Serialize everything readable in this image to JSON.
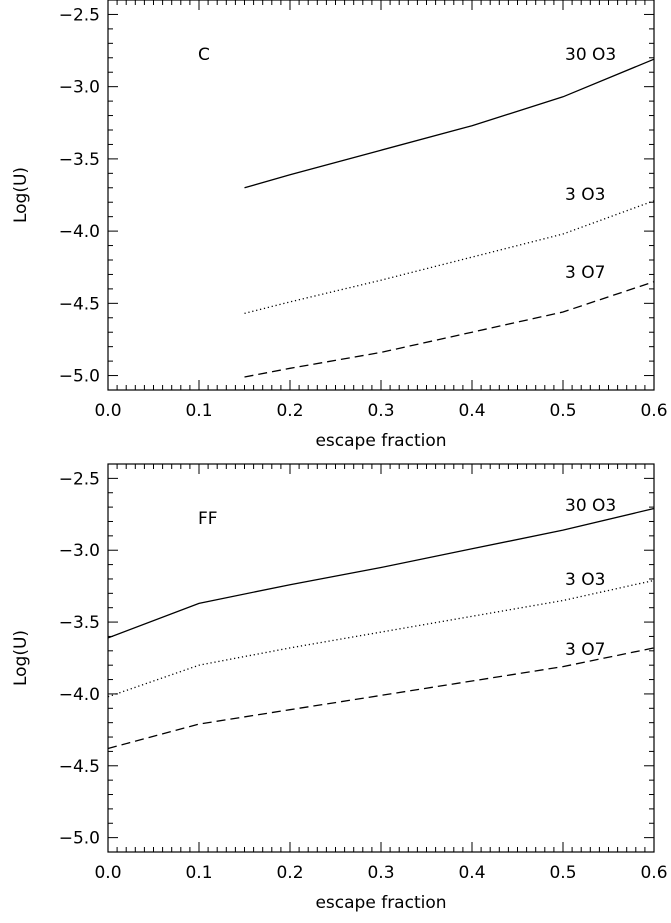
{
  "chart_data": [
    {
      "type": "line",
      "panel": "C",
      "xlabel": "escape fraction",
      "ylabel": "Log(U)",
      "xlim": [
        0.0,
        0.6
      ],
      "ylim": [
        -5.1,
        -2.4
      ],
      "x_ticks": [
        "0.0",
        "0.1",
        "0.2",
        "0.3",
        "0.4",
        "0.5",
        "0.6"
      ],
      "y_ticks": [
        "-2.5",
        "-3.0",
        "-3.5",
        "-4.0",
        "-4.5",
        "-5.0"
      ],
      "annotations": [
        "C",
        "30 O3",
        "3 O3",
        "3 O7"
      ],
      "series": [
        {
          "name": "30 O3",
          "style": "solid",
          "x": [
            0.15,
            0.2,
            0.3,
            0.4,
            0.5,
            0.6
          ],
          "y": [
            -3.7,
            -3.61,
            -3.44,
            -3.27,
            -3.07,
            -2.81
          ]
        },
        {
          "name": "3 O3",
          "style": "dotted",
          "x": [
            0.15,
            0.2,
            0.3,
            0.4,
            0.5,
            0.6
          ],
          "y": [
            -4.57,
            -4.49,
            -4.34,
            -4.18,
            -4.02,
            -3.79
          ]
        },
        {
          "name": "3 O7",
          "style": "dashed",
          "x": [
            0.15,
            0.2,
            0.3,
            0.4,
            0.5,
            0.6
          ],
          "y": [
            -5.01,
            -4.95,
            -4.84,
            -4.7,
            -4.56,
            -4.35
          ]
        }
      ]
    },
    {
      "type": "line",
      "panel": "FF",
      "xlabel": "escape fraction",
      "ylabel": "Log(U)",
      "xlim": [
        0.0,
        0.6
      ],
      "ylim": [
        -5.1,
        -2.4
      ],
      "x_ticks": [
        "0.0",
        "0.1",
        "0.2",
        "0.3",
        "0.4",
        "0.5",
        "0.6"
      ],
      "y_ticks": [
        "-2.5",
        "-3.0",
        "-3.5",
        "-4.0",
        "-4.5",
        "-5.0"
      ],
      "annotations": [
        "FF",
        "30 O3",
        "3 O3",
        "3 O7"
      ],
      "series": [
        {
          "name": "30 O3",
          "style": "solid",
          "x": [
            0.0,
            0.1,
            0.2,
            0.3,
            0.4,
            0.5,
            0.6
          ],
          "y": [
            -3.61,
            -3.37,
            -3.24,
            -3.12,
            -2.99,
            -2.86,
            -2.71
          ]
        },
        {
          "name": "3 O3",
          "style": "dotted",
          "x": [
            0.0,
            0.1,
            0.2,
            0.3,
            0.4,
            0.5,
            0.6
          ],
          "y": [
            -4.02,
            -3.8,
            -3.68,
            -3.57,
            -3.46,
            -3.35,
            -3.21
          ]
        },
        {
          "name": "3 O7",
          "style": "dashed",
          "x": [
            0.0,
            0.1,
            0.2,
            0.3,
            0.4,
            0.5,
            0.6
          ],
          "y": [
            -4.38,
            -4.21,
            -4.11,
            -4.01,
            -3.91,
            -3.81,
            -3.68
          ]
        }
      ]
    }
  ]
}
